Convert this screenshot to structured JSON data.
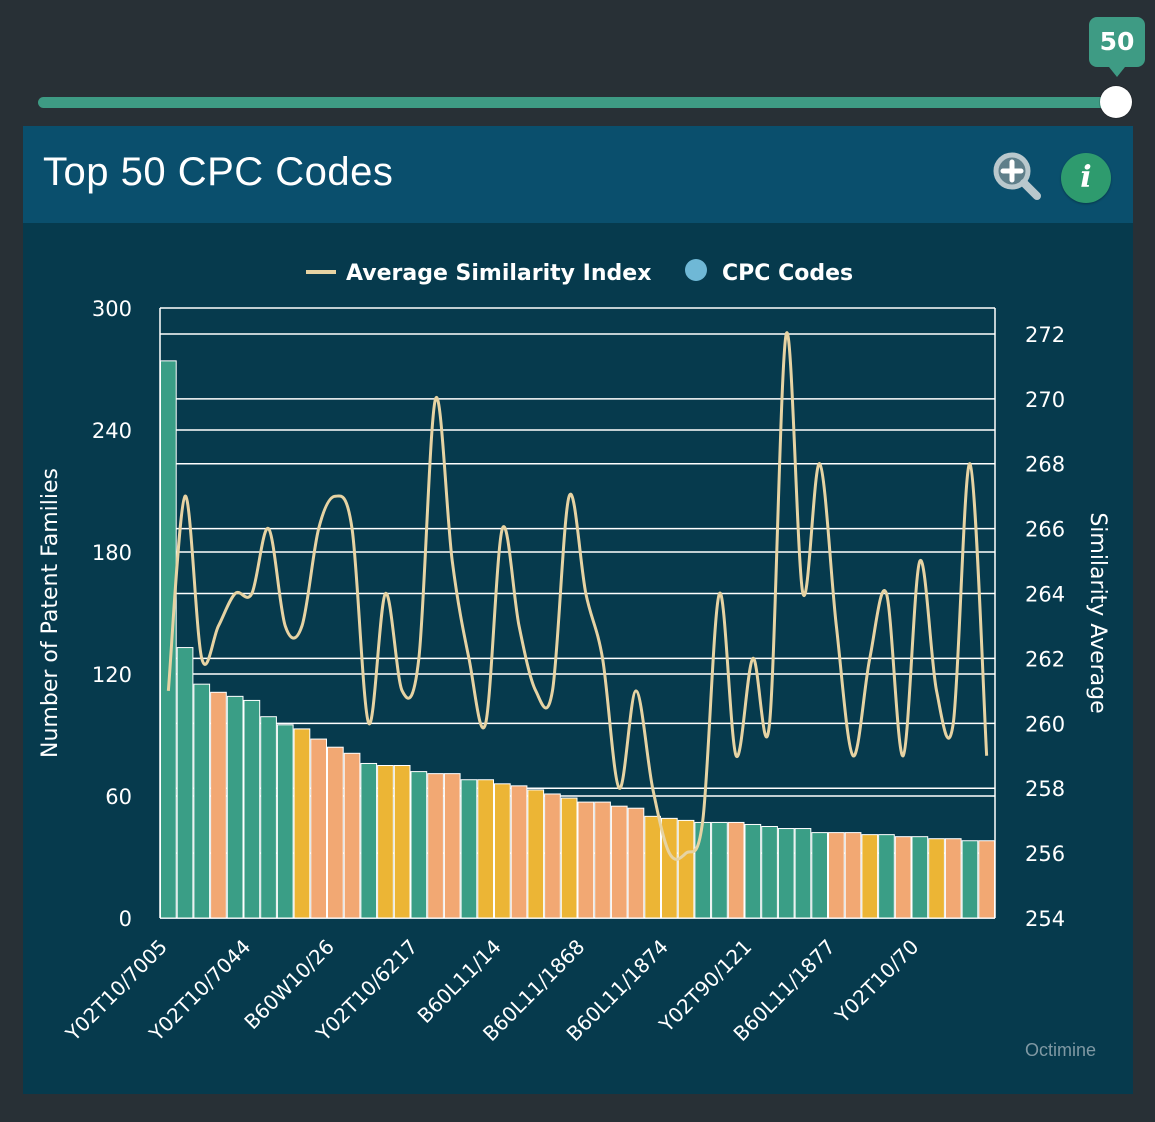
{
  "slider": {
    "value": "50",
    "level": 1.0,
    "color": "#3e9b84"
  },
  "card": {
    "title": "Top 50 CPC Codes",
    "credit": "Octimine"
  },
  "icons": {
    "zoom": "zoom-in-icon",
    "info": "info-icon",
    "info_glyph": "i"
  },
  "chart_data": {
    "type": "bar",
    "title": "",
    "legend": [
      {
        "label": "Average Similarity Index",
        "kind": "line",
        "color": "#e6d3a3"
      },
      {
        "label": "CPC Codes",
        "kind": "dot",
        "color": "#6fb8d6"
      }
    ],
    "legend_position": "top",
    "ylabel": "Number of Patent Families",
    "y2label": "Similarity Average",
    "ylim": [
      0,
      300
    ],
    "y_ticks": [
      0,
      60,
      120,
      180,
      240,
      300
    ],
    "y2lim": [
      254,
      272.8
    ],
    "y2_ticks": [
      254,
      256,
      258,
      260,
      262,
      264,
      266,
      268,
      270,
      272
    ],
    "x_tick_labels": [
      {
        "index": 1,
        "label": "Y02T10/7005"
      },
      {
        "index": 6,
        "label": "Y02T10/7044"
      },
      {
        "index": 11,
        "label": "B60W10/26"
      },
      {
        "index": 16,
        "label": "Y02T10/6217"
      },
      {
        "index": 21,
        "label": "B60L11/14"
      },
      {
        "index": 26,
        "label": "B60L11/1868"
      },
      {
        "index": 31,
        "label": "B60L11/1874"
      },
      {
        "index": 36,
        "label": "Y02T90/121"
      },
      {
        "index": 41,
        "label": "B60L11/1877"
      },
      {
        "index": 46,
        "label": "Y02T10/70"
      }
    ],
    "bar_values": [
      274,
      133,
      115,
      111,
      109,
      107,
      99,
      95,
      93,
      88,
      84,
      81,
      76,
      75,
      75,
      72,
      71,
      71,
      68,
      68,
      66,
      65,
      63,
      61,
      59,
      57,
      57,
      55,
      54,
      50,
      49,
      48,
      47,
      47,
      47,
      46,
      45,
      44,
      44,
      42,
      42,
      42,
      41,
      41,
      40,
      40,
      39,
      39,
      38,
      38
    ],
    "bar_color_keys": [
      "g",
      "g",
      "g",
      "o",
      "g",
      "g",
      "g",
      "g",
      "y",
      "o",
      "o",
      "o",
      "g",
      "y",
      "y",
      "g",
      "o",
      "o",
      "g",
      "y",
      "y",
      "o",
      "y",
      "o",
      "y",
      "o",
      "o",
      "o",
      "o",
      "y",
      "y",
      "y",
      "g",
      "g",
      "o",
      "g",
      "g",
      "g",
      "g",
      "g",
      "o",
      "o",
      "y",
      "g",
      "o",
      "g",
      "y",
      "o",
      "g",
      "o"
    ],
    "bar_palette": {
      "g": "#3a9e86",
      "o": "#f2a873",
      "y": "#ecb535"
    },
    "line_values": [
      261,
      267,
      262,
      263,
      264,
      264,
      266,
      263,
      263,
      266,
      267,
      266,
      260,
      264,
      261,
      262,
      270,
      265,
      262,
      260,
      266,
      263,
      261,
      261,
      267,
      264,
      262,
      258,
      261,
      258,
      256,
      256,
      257,
      264,
      259,
      262,
      260,
      272,
      264,
      268,
      263,
      259,
      262,
      264,
      259,
      265,
      261,
      260,
      268,
      259
    ],
    "line_color": "#e6d3a3",
    "gridlines": true
  }
}
